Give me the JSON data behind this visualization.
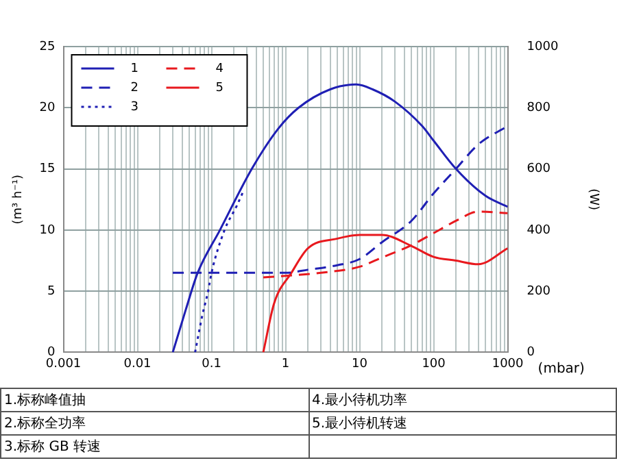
{
  "chart_data": {
    "type": "line",
    "xlabel": "(mbar)",
    "ylabel": "(m³ h⁻¹)",
    "y2label": "(W)",
    "log": "x",
    "grid": true,
    "legend": "top left",
    "marker": "none",
    "xlim": [
      0.001,
      1000
    ],
    "xticks": [
      0.001,
      {
        "value": 0.002,
        "label": null
      },
      {
        "value": 0.003,
        "label": null
      },
      {
        "value": 0.004,
        "label": null
      },
      {
        "value": 0.005,
        "label": null
      },
      {
        "value": 0.006,
        "label": null
      },
      {
        "value": 0.007,
        "label": null
      },
      {
        "value": 0.008,
        "label": null
      },
      {
        "value": 0.009,
        "label": null
      },
      0.01,
      {
        "value": 0.02,
        "label": null
      },
      {
        "value": 0.03,
        "label": null
      },
      {
        "value": 0.04,
        "label": null
      },
      {
        "value": 0.05,
        "label": null
      },
      {
        "value": 0.06,
        "label": null
      },
      {
        "value": 0.07,
        "label": null
      },
      {
        "value": 0.08,
        "label": null
      },
      {
        "value": 0.09,
        "label": null
      },
      0.1,
      {
        "value": 0.2,
        "label": null
      },
      {
        "value": 0.3,
        "label": null
      },
      {
        "value": 0.4,
        "label": null
      },
      {
        "value": 0.5,
        "label": null
      },
      {
        "value": 0.6,
        "label": null
      },
      {
        "value": 0.7,
        "label": null
      },
      {
        "value": 0.8,
        "label": null
      },
      {
        "value": 0.9,
        "label": null
      },
      1,
      {
        "value": 2,
        "label": null
      },
      {
        "value": 3,
        "label": null
      },
      {
        "value": 4,
        "label": null
      },
      {
        "value": 5,
        "label": null
      },
      {
        "value": 6,
        "label": null
      },
      {
        "value": 7,
        "label": null
      },
      {
        "value": 8,
        "label": null
      },
      {
        "value": 9,
        "label": null
      },
      10,
      {
        "value": 20,
        "label": null
      },
      {
        "value": 30,
        "label": null
      },
      {
        "value": 40,
        "label": null
      },
      {
        "value": 50,
        "label": null
      },
      {
        "value": 60,
        "label": null
      },
      {
        "value": 70,
        "label": null
      },
      {
        "value": 80,
        "label": null
      },
      {
        "value": 90,
        "label": null
      },
      100,
      {
        "value": 200,
        "label": null
      },
      {
        "value": 300,
        "label": null
      },
      {
        "value": 400,
        "label": null
      },
      {
        "value": 500,
        "label": null
      },
      {
        "value": 600,
        "label": null
      },
      {
        "value": 700,
        "label": null
      },
      {
        "value": 800,
        "label": null
      },
      {
        "value": 900,
        "label": null
      },
      1000
    ],
    "ylim": [
      0,
      25
    ],
    "yticks": [
      0,
      5,
      10,
      15,
      20,
      25
    ],
    "y2lim": [
      0,
      1000
    ],
    "y2ticks": [
      0,
      200,
      400,
      600,
      800,
      1000
    ],
    "series": [
      {
        "name": "1",
        "color": "#1f1fb4",
        "line_style": "solid",
        "x": [
          0.03,
          0.045,
          0.065,
          0.13,
          0.35,
          0.8,
          1.5,
          4,
          9,
          15,
          30,
          70,
          100,
          200,
          500,
          1000
        ],
        "values": [
          0,
          3.5,
          6.5,
          10,
          15,
          18.3,
          20,
          21.5,
          21.9,
          21.5,
          20.5,
          18.5,
          17.3,
          15,
          12.8,
          11.9
        ]
      },
      {
        "name": "2",
        "color": "#1f1fb4",
        "line_style": "dashed",
        "axis": "y2",
        "x": [
          0.03,
          0.1,
          1,
          2,
          5,
          10,
          20,
          50,
          100,
          200,
          400,
          1000
        ],
        "values": [
          260,
          260,
          260,
          270,
          285,
          305,
          360,
          430,
          520,
          600,
          680,
          740
        ]
      },
      {
        "name": "3",
        "color": "#1f1fb4",
        "line_style": "dotted",
        "x": [
          0.06,
          0.075,
          0.09,
          0.1,
          0.15,
          0.22,
          0.27
        ],
        "values": [
          0,
          3,
          5,
          6.5,
          10,
          12,
          13.2
        ]
      },
      {
        "name": "4",
        "color": "#e8191e",
        "line_style": "dashed",
        "axis": "y2",
        "x": [
          0.5,
          1,
          3,
          10,
          20,
          50,
          100,
          200,
          400,
          1000
        ],
        "values": [
          245,
          250,
          260,
          280,
          310,
          350,
          390,
          430,
          460,
          455
        ]
      },
      {
        "name": "5",
        "color": "#e8191e",
        "line_style": "solid",
        "x": [
          0.5,
          0.7,
          1.2,
          2,
          5,
          10,
          20,
          50,
          100,
          200,
          400,
          1000
        ],
        "values": [
          0,
          4,
          6.5,
          8.5,
          9.3,
          9.6,
          9.6,
          8.7,
          7.8,
          7.5,
          7.2,
          8.5
        ]
      }
    ],
    "annotations": [
      "1.标称峰值抽",
      "2.标称全功率",
      "3.标称 GB 转速",
      "4.最小待机功率",
      "5.最小待机转速"
    ]
  }
}
